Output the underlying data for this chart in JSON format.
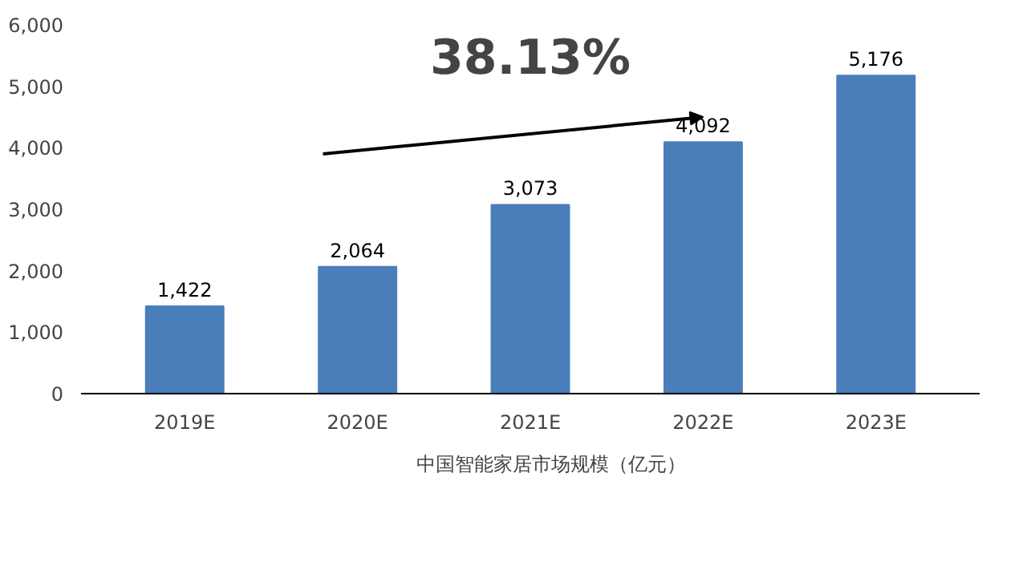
{
  "chart_data": {
    "type": "bar",
    "categories": [
      "2019E",
      "2020E",
      "2021E",
      "2022E",
      "2023E"
    ],
    "series": [
      {
        "name": "中国智能家居市场规模（亿元）",
        "color": "#4a7ebb",
        "values": [
          1422,
          2064,
          3073,
          4092,
          5176
        ],
        "value_labels": [
          "1,422",
          "2,064",
          "3,073",
          "4,092",
          "5,176"
        ]
      }
    ],
    "ylim": [
      0,
      6000
    ],
    "yticks": [
      0,
      {
        "value": 1000,
        "label": "1,000"
      },
      {
        "value": 2000,
        "label": "2,000"
      },
      {
        "value": 3000,
        "label": "3,000"
      },
      {
        "value": 4000,
        "label": "4,000"
      },
      {
        "value": 5000,
        "label": "5,000"
      },
      {
        "value": 6000,
        "label": "6,000"
      }
    ],
    "grid": false,
    "legend": "bottom",
    "annotations": [
      "38.13%"
    ]
  }
}
